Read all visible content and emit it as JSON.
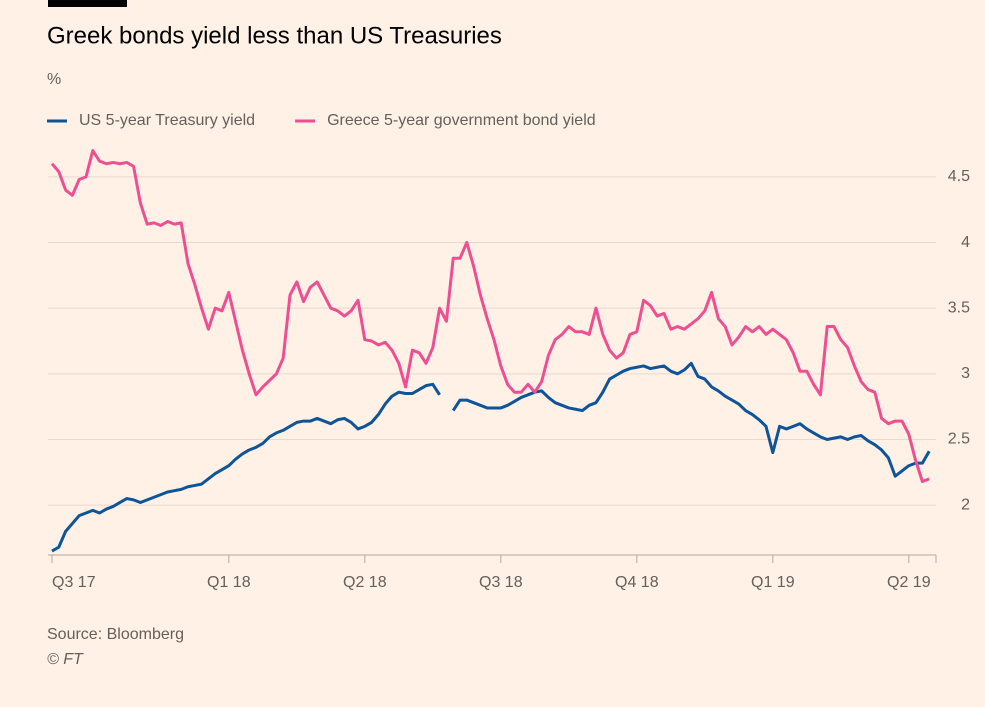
{
  "chart_data": {
    "type": "line",
    "title": "Greek bonds yield less than US Treasuries",
    "y_label": "%",
    "source": "Source: Bloomberg",
    "credit": "© FT",
    "x": [
      0,
      0.05,
      0.1,
      0.15,
      0.2,
      0.25,
      0.3,
      0.35,
      0.4,
      0.45,
      0.5,
      0.55,
      0.6,
      0.65,
      0.7,
      0.75,
      0.8,
      0.85,
      0.9,
      0.95,
      1,
      1.05,
      1.1,
      1.15,
      1.2,
      1.25,
      1.3,
      1.35,
      1.4,
      1.45,
      1.5,
      1.55,
      1.6,
      1.65,
      1.7,
      1.75,
      1.8,
      1.85,
      1.9,
      1.95,
      2,
      2.05,
      2.1,
      2.15,
      2.2,
      2.25,
      2.3,
      2.35,
      2.4,
      2.45,
      2.5,
      2.55,
      2.6,
      2.65,
      2.7,
      2.75,
      2.8,
      2.85,
      2.9,
      2.95,
      3,
      3.05,
      3.1,
      3.15,
      3.2,
      3.25,
      3.3,
      3.35,
      3.4,
      3.45,
      3.5,
      3.55,
      3.6,
      3.65,
      3.7,
      3.75,
      3.8,
      3.85,
      3.9,
      3.95,
      4,
      4.05,
      4.1,
      4.15,
      4.2,
      4.25,
      4.3,
      4.35,
      4.4,
      4.45,
      4.5,
      4.55,
      4.6,
      4.65,
      4.7,
      4.75,
      4.8,
      4.85,
      4.9,
      4.95,
      5,
      5.05,
      5.1,
      5.15,
      5.2,
      5.25,
      5.3,
      5.35,
      5.4,
      5.45,
      5.5,
      5.55,
      5.6,
      5.65,
      5.7,
      5.75,
      5.8,
      5.85,
      5.9,
      5.95,
      6,
      6.05,
      6.1,
      6.15,
      6.2,
      6.25,
      6.3,
      6.35,
      6.4,
      6.45
    ],
    "series": [
      {
        "name": "US 5-year Treasury yield",
        "color": "#0f5499",
        "values": [
          1.65,
          1.68,
          1.8,
          1.86,
          1.92,
          1.94,
          1.96,
          1.94,
          1.97,
          1.99,
          2.02,
          2.05,
          2.04,
          2.02,
          2.04,
          2.06,
          2.08,
          2.1,
          2.11,
          2.12,
          2.14,
          2.15,
          2.16,
          2.2,
          2.24,
          2.27,
          2.3,
          2.35,
          2.39,
          2.42,
          2.44,
          2.47,
          2.52,
          2.55,
          2.57,
          2.6,
          2.63,
          2.64,
          2.64,
          2.66,
          2.64,
          2.62,
          2.65,
          2.66,
          2.63,
          2.58,
          2.6,
          2.63,
          2.69,
          2.77,
          2.83,
          2.86,
          2.85,
          2.85,
          2.88,
          2.91,
          2.92,
          2.84,
          null,
          2.72,
          2.8,
          2.8,
          2.78,
          2.76,
          2.74,
          2.74,
          2.74,
          2.76,
          2.79,
          2.82,
          2.84,
          2.86,
          2.87,
          2.82,
          2.78,
          2.76,
          2.74,
          2.73,
          2.72,
          2.76,
          2.78,
          2.86,
          2.96,
          2.99,
          3.02,
          3.04,
          3.05,
          3.06,
          3.04,
          3.05,
          3.06,
          3.02,
          3.0,
          3.03,
          3.08,
          2.98,
          2.96,
          2.9,
          2.87,
          2.83,
          2.8,
          2.77,
          2.72,
          2.69,
          2.65,
          2.6,
          2.4,
          2.6,
          2.58,
          2.6,
          2.62,
          2.58,
          2.55,
          2.52,
          2.5,
          2.51,
          2.52,
          2.5,
          2.52,
          2.53,
          2.49,
          2.46,
          2.42,
          2.36,
          2.22,
          2.26,
          2.3,
          2.32,
          2.32,
          2.41
        ]
      },
      {
        "name": "Greece 5-year government bond yield",
        "color": "#ed4f92",
        "values": [
          4.6,
          4.54,
          4.4,
          4.36,
          4.48,
          4.5,
          4.7,
          4.62,
          4.6,
          4.61,
          4.6,
          4.61,
          4.58,
          4.3,
          4.14,
          4.15,
          4.13,
          4.16,
          4.14,
          4.15,
          3.84,
          3.68,
          3.5,
          3.34,
          3.5,
          3.48,
          3.62,
          3.4,
          3.18,
          3.0,
          2.84,
          2.9,
          2.95,
          3.0,
          3.12,
          3.6,
          3.7,
          3.55,
          3.66,
          3.7,
          3.6,
          3.5,
          3.48,
          3.44,
          3.48,
          3.56,
          3.26,
          3.25,
          3.22,
          3.24,
          3.18,
          3.08,
          2.9,
          3.18,
          3.16,
          3.08,
          3.2,
          3.5,
          3.4,
          3.88,
          3.88,
          4.0,
          3.82,
          3.6,
          3.42,
          3.26,
          3.06,
          2.92,
          2.86,
          2.86,
          2.92,
          2.86,
          2.94,
          3.14,
          3.26,
          3.3,
          3.36,
          3.32,
          3.32,
          3.3,
          3.5,
          3.3,
          3.18,
          3.12,
          3.16,
          3.3,
          3.32,
          3.56,
          3.52,
          3.44,
          3.46,
          3.34,
          3.36,
          3.34,
          3.38,
          3.42,
          3.48,
          3.62,
          3.42,
          3.36,
          3.22,
          3.28,
          3.36,
          3.32,
          3.36,
          3.3,
          3.34,
          3.3,
          3.26,
          3.16,
          3.02,
          3.02,
          2.92,
          2.84,
          3.36,
          3.36,
          3.26,
          3.2,
          3.06,
          2.94,
          2.88,
          2.86,
          2.66,
          2.62,
          2.64,
          2.64,
          2.54,
          2.34,
          2.18,
          2.2
        ]
      }
    ],
    "xlim": [
      0,
      6.5
    ],
    "xticks": [
      {
        "value": 0,
        "label": "Q3 17"
      },
      {
        "value": 1.3,
        "label": "Q1 18"
      },
      {
        "value": 2.3,
        "label": "Q2 18"
      },
      {
        "value": 3.3,
        "label": "Q3 18"
      },
      {
        "value": 4.3,
        "label": "Q4 18"
      },
      {
        "value": 5.3,
        "label": "Q1 19"
      },
      {
        "value": 6.3,
        "label": "Q2 19"
      }
    ],
    "ylim": [
      1.62,
      4.8
    ],
    "yticks": [
      2,
      2.5,
      3,
      3.5,
      4,
      4.5
    ],
    "grid": true
  }
}
